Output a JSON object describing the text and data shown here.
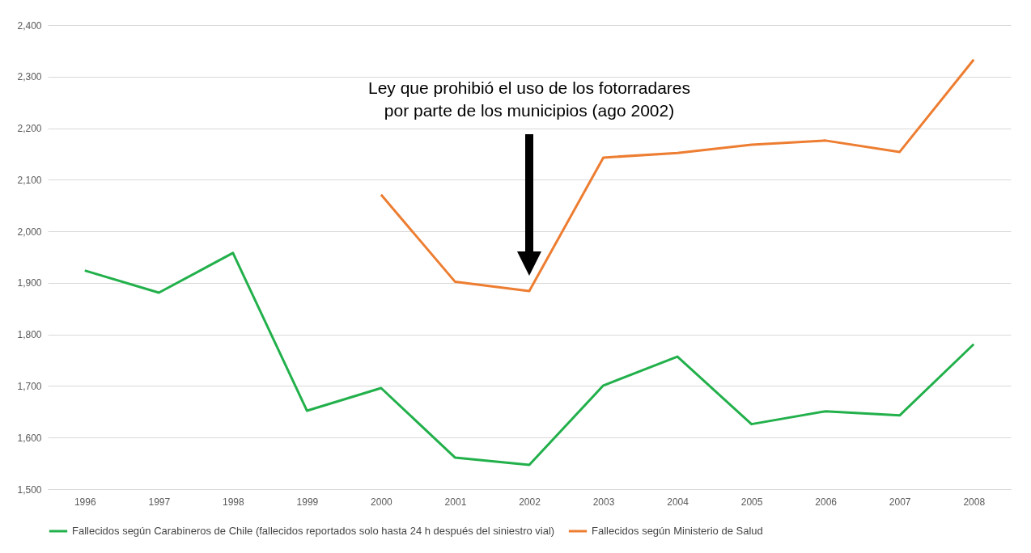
{
  "chart_data": {
    "type": "line",
    "categories": [
      "1996",
      "1997",
      "1998",
      "1999",
      "2000",
      "2001",
      "2002",
      "2003",
      "2004",
      "2005",
      "2006",
      "2007",
      "2008"
    ],
    "series": [
      {
        "name": "Fallecidos según Carabineros de Chile (fallecidos reportados solo hasta 24 h después del siniestro vial)",
        "color": "#22b04b",
        "values": [
          1924,
          1881,
          1958,
          1652,
          1696,
          1561,
          1547,
          1701,
          1757,
          1626,
          1651,
          1643,
          1781
        ]
      },
      {
        "name": "Fallecidos según Ministerio de Salud",
        "color": "#ed7d31",
        "values": [
          null,
          null,
          null,
          null,
          2071,
          1902,
          1884,
          2143,
          2152,
          2168,
          2176,
          2154,
          2333
        ]
      }
    ],
    "ylim": [
      1500,
      2400
    ],
    "yticks": [
      {
        "value": 1500,
        "label": "1,500"
      },
      {
        "value": 1600,
        "label": "1,600"
      },
      {
        "value": 1700,
        "label": "1,700"
      },
      {
        "value": 1800,
        "label": "1,800"
      },
      {
        "value": 1900,
        "label": "1,900"
      },
      {
        "value": 2000,
        "label": "2,000"
      },
      {
        "value": 2100,
        "label": "2,100"
      },
      {
        "value": 2200,
        "label": "2,200"
      },
      {
        "value": 2300,
        "label": "2,300"
      },
      {
        "value": 2400,
        "label": "2,400"
      }
    ],
    "annotations": [
      "Ley que prohibió el uso de los fotorradares\npor parte de los municipios (ago 2002)"
    ],
    "grid": "y",
    "legend": "bottom",
    "marker": "none",
    "line_style": "solid"
  }
}
